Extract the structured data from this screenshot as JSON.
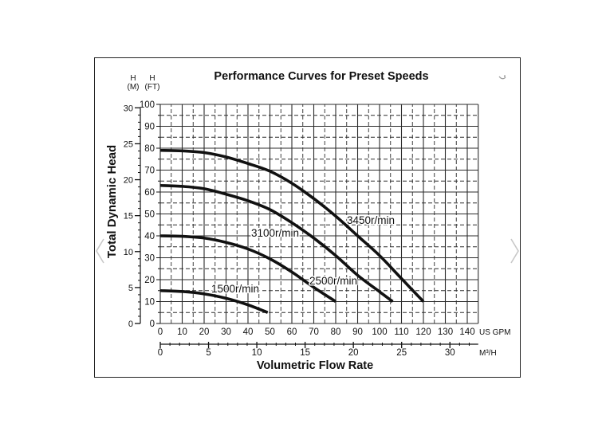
{
  "carousel": {
    "prev_icon": "chevron-left-icon",
    "next_icon": "chevron-right-icon"
  },
  "colors": {
    "curve": "#111111",
    "grid": "#2b2b2b",
    "nav_arrow": "#c8c8c8"
  },
  "chart_data": {
    "type": "line",
    "title": "Performance Curves for Preset Speeds",
    "xlabel": "Volumetric Flow Rate",
    "ylabel": "Total Dynamic Head",
    "x_unit": "US GPM",
    "x_ticks": [
      0,
      10,
      20,
      30,
      40,
      50,
      60,
      70,
      80,
      90,
      100,
      110,
      120,
      130,
      140
    ],
    "xlim": [
      0,
      145
    ],
    "x2_unit": "M³/H",
    "x2_ticks": [
      0,
      5,
      10,
      15,
      20,
      25,
      30
    ],
    "y_header": {
      "symbol": "H",
      "unit": "(FT)"
    },
    "y_ticks": [
      0,
      10,
      20,
      30,
      40,
      50,
      60,
      70,
      80,
      90,
      100
    ],
    "ylim": [
      0,
      100
    ],
    "y2_header": {
      "symbol": "H",
      "unit": "(M)"
    },
    "y2_ticks": [
      0,
      5,
      10,
      15,
      20,
      25,
      30
    ],
    "grid": true,
    "series": [
      {
        "name": "3450r/min",
        "points": [
          [
            0,
            79
          ],
          [
            10,
            78.8
          ],
          [
            20,
            78
          ],
          [
            30,
            76
          ],
          [
            40,
            73
          ],
          [
            50,
            69.5
          ],
          [
            60,
            64
          ],
          [
            70,
            57
          ],
          [
            80,
            49
          ],
          [
            90,
            40
          ],
          [
            100,
            31
          ],
          [
            110,
            20.5
          ],
          [
            120,
            10
          ]
        ]
      },
      {
        "name": "3100r/min",
        "points": [
          [
            0,
            63
          ],
          [
            10,
            62.6
          ],
          [
            20,
            61.5
          ],
          [
            30,
            59
          ],
          [
            40,
            56
          ],
          [
            50,
            52
          ],
          [
            60,
            46
          ],
          [
            70,
            39
          ],
          [
            80,
            31
          ],
          [
            90,
            22
          ],
          [
            100,
            14.5
          ],
          [
            106,
            10
          ]
        ]
      },
      {
        "name": "2500r/min",
        "points": [
          [
            0,
            40
          ],
          [
            10,
            39.8
          ],
          [
            20,
            39
          ],
          [
            30,
            37
          ],
          [
            40,
            34
          ],
          [
            50,
            29.5
          ],
          [
            60,
            23.5
          ],
          [
            70,
            16.5
          ],
          [
            80,
            10
          ]
        ]
      },
      {
        "name": "1500r/min",
        "points": [
          [
            0,
            15
          ],
          [
            10,
            14.6
          ],
          [
            20,
            13.5
          ],
          [
            30,
            11.5
          ],
          [
            40,
            8.5
          ],
          [
            49,
            5
          ]
        ]
      }
    ]
  }
}
